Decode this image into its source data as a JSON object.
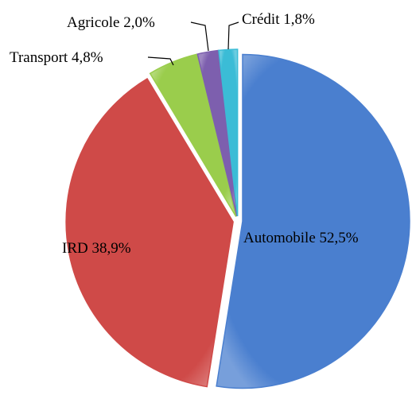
{
  "chart_data": {
    "type": "pie",
    "categories": [
      "Automobile",
      "IRD",
      "Transport",
      "Agricole",
      "Crédit"
    ],
    "values": [
      52.5,
      38.9,
      4.8,
      2.0,
      1.8
    ],
    "value_labels": [
      "52,5%",
      "38,9%",
      "4,8%",
      "2,0%",
      "1,8%"
    ],
    "colors": [
      "#4a7fcf",
      "#cf4a48",
      "#9acd4c",
      "#7d5fae",
      "#3bbcd6"
    ]
  }
}
